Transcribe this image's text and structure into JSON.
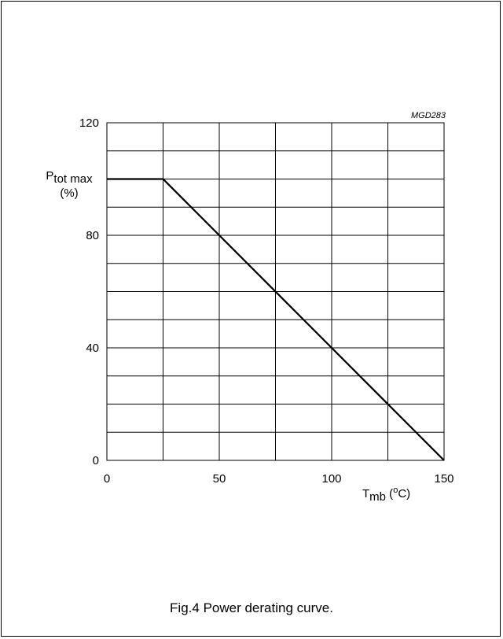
{
  "chart_data": {
    "type": "line",
    "figure_code": "MGD283",
    "ylabel": {
      "main": "P",
      "sub": "tot max",
      "unit": "(%)"
    },
    "xlabel": {
      "main": "T",
      "sub": "mb",
      "unit_open": " (",
      "unit_sup": "o",
      "unit_close": "C)"
    },
    "xlim": [
      0,
      150
    ],
    "ylim": [
      0,
      120
    ],
    "x_ticks": [
      0,
      50,
      100,
      150
    ],
    "y_ticks": [
      0,
      40,
      80,
      120
    ],
    "x_grid_step": 25,
    "y_grid_step": 10,
    "grid": true,
    "series": [
      {
        "x": [
          0,
          25,
          150
        ],
        "y": [
          100,
          100,
          0
        ]
      }
    ],
    "caption": "Fig.4  Power derating curve."
  }
}
